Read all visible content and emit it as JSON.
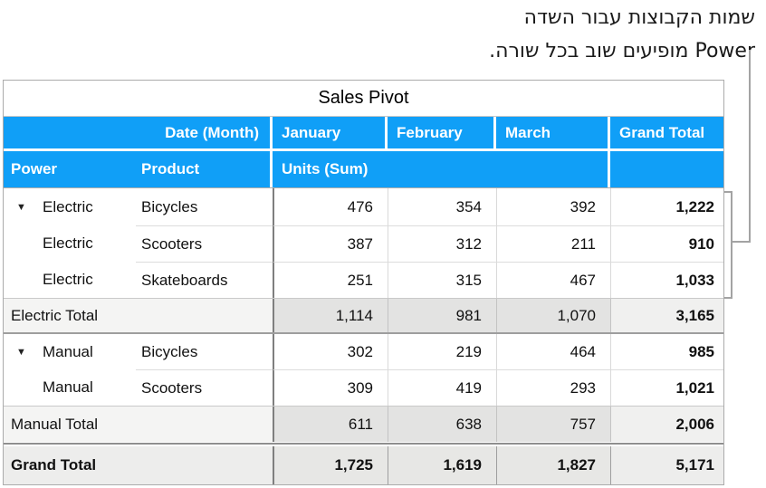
{
  "annotation": {
    "line1": "שמות הקבוצות עבור השדה",
    "line2": "Power מופיעים שוב בכל שורה."
  },
  "table": {
    "title": "Sales Pivot",
    "header1": {
      "date_label": "Date (Month)",
      "months": [
        "January",
        "February",
        "March"
      ],
      "grand_total": "Grand Total"
    },
    "header2": {
      "power": "Power",
      "product": "Product",
      "units": "Units (Sum)"
    },
    "rows": [
      {
        "type": "data",
        "triangle": true,
        "power": "Electric",
        "product": "Bicycles",
        "jan": "476",
        "feb": "354",
        "mar": "392",
        "total": "1,222"
      },
      {
        "type": "data",
        "triangle": false,
        "power": "Electric",
        "product": "Scooters",
        "jan": "387",
        "feb": "312",
        "mar": "211",
        "total": "910"
      },
      {
        "type": "data",
        "triangle": false,
        "power": "Electric",
        "product": "Skateboards",
        "jan": "251",
        "feb": "315",
        "mar": "467",
        "total": "1,033"
      },
      {
        "type": "subtotal",
        "label": "Electric Total",
        "jan": "1,114",
        "feb": "981",
        "mar": "1,070",
        "total": "3,165"
      },
      {
        "type": "data",
        "triangle": true,
        "power": "Manual",
        "product": "Bicycles",
        "jan": "302",
        "feb": "219",
        "mar": "464",
        "total": "985"
      },
      {
        "type": "data",
        "triangle": false,
        "power": "Manual",
        "product": "Scooters",
        "jan": "309",
        "feb": "419",
        "mar": "293",
        "total": "1,021"
      },
      {
        "type": "subtotal",
        "label": "Manual Total",
        "jan": "611",
        "feb": "638",
        "mar": "757",
        "total": "2,006"
      },
      {
        "type": "grandtotal",
        "label": "Grand Total",
        "jan": "1,725",
        "feb": "1,619",
        "mar": "1,827",
        "total": "5,171"
      }
    ]
  },
  "icons": {
    "disclosure_triangle": "▼"
  },
  "colors": {
    "header_blue": "#109ff7",
    "callout_gray": "#a3a3a3",
    "subtotal_bg": "#e3e3e2",
    "subtotal_label_bg": "#f4f4f3",
    "grand_row_bg": "#e7e7e5",
    "grand_label_bg": "#ededec"
  }
}
